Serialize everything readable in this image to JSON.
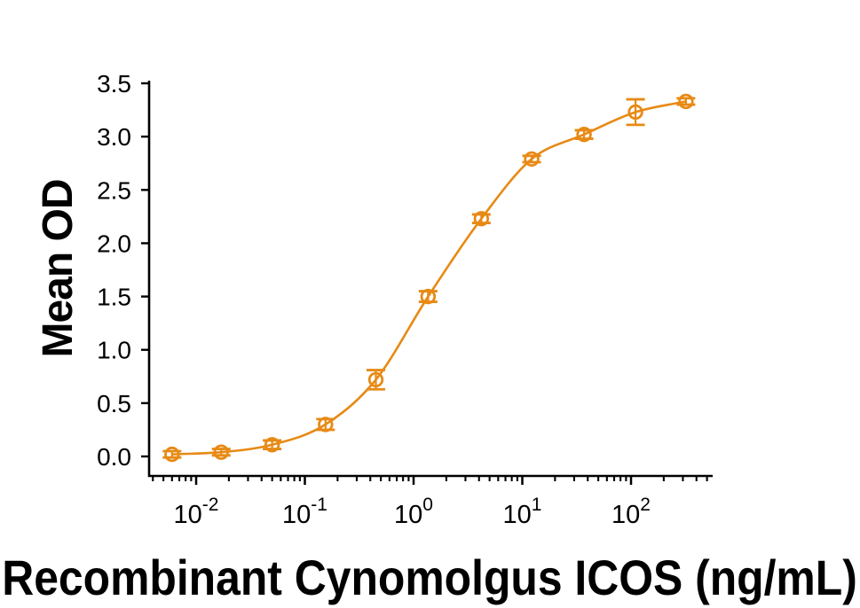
{
  "chart_data": {
    "type": "line",
    "title": "",
    "xlabel": "Recombinant Cynomolgus ICOS (ng/mL)",
    "ylabel": "Mean OD",
    "x_scale": "log10",
    "xlim": [
      0.0037,
      563
    ],
    "ylim": [
      0,
      3.5
    ],
    "grid": false,
    "legend_position": "none",
    "y_ticks": [
      0,
      0.5,
      1,
      1.5,
      2,
      2.5,
      3,
      3.5
    ],
    "y_tick_labels": [
      "0.0",
      "0.5",
      "1.0",
      "1.5",
      "2.0",
      "2.5",
      "3.0",
      "3.5"
    ],
    "x_tick_exponents": [
      -2,
      -1,
      0,
      1,
      2
    ],
    "x_tick_labels": [
      "10⁻²",
      "10⁻¹",
      "10⁰",
      "10¹",
      "10²"
    ],
    "series": [
      {
        "name": "Mean OD",
        "marker": "open-circle",
        "x": [
          0.006,
          0.017,
          0.05,
          0.155,
          0.45,
          1.36,
          4.2,
          12.2,
          37,
          110,
          320
        ],
        "y": [
          0.02,
          0.04,
          0.11,
          0.3,
          0.72,
          1.5,
          2.23,
          2.79,
          3.02,
          3.23,
          3.33
        ],
        "yerr": [
          0.03,
          0.03,
          0.04,
          0.05,
          0.09,
          0.05,
          0.04,
          0.03,
          0.04,
          0.12,
          0.03
        ]
      }
    ],
    "colors": {
      "curve": "#E78A15",
      "axis": "#000000",
      "text": "#000000",
      "background": "#FFFFFF"
    }
  }
}
